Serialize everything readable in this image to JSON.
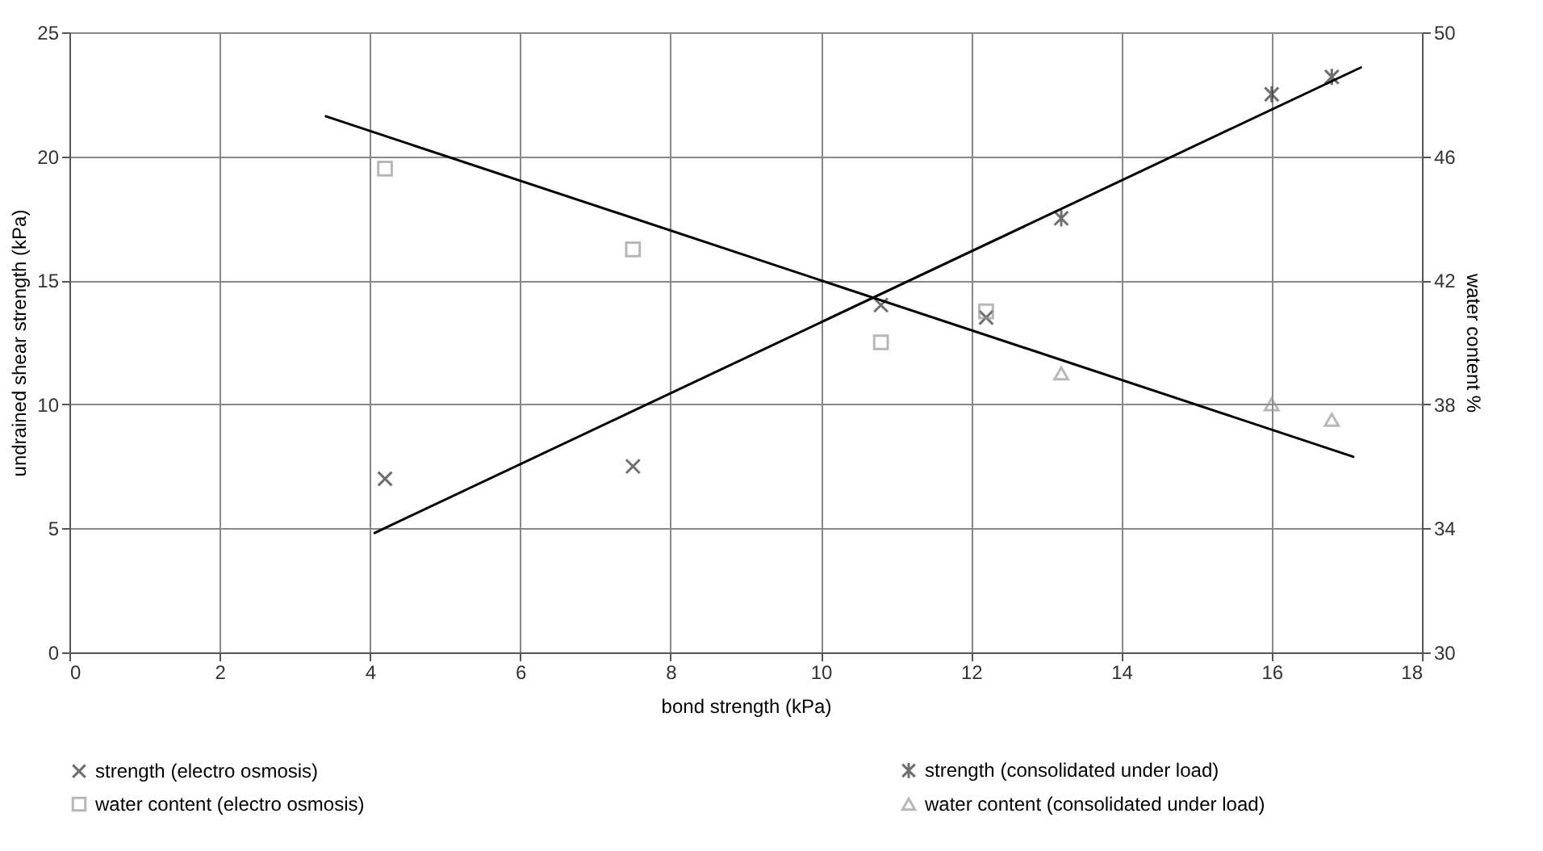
{
  "chart_data": {
    "type": "scatter",
    "xlabel": "bond strength (kPa)",
    "ylabel": "undrained shear strength (kPa)",
    "y2label": "water content %",
    "xlim": [
      0,
      18
    ],
    "xticks": [
      0,
      2,
      4,
      6,
      8,
      10,
      12,
      14,
      16,
      18
    ],
    "ylim": [
      0,
      25
    ],
    "yticks": [
      0,
      5,
      10,
      15,
      20,
      25
    ],
    "y2lim": [
      30,
      50
    ],
    "y2ticks": [
      30,
      34,
      38,
      42,
      46,
      50
    ],
    "grid": true,
    "legend": "bottom",
    "series": [
      {
        "name": "strength (electro osmosis)",
        "color": "#333333",
        "x": [
          4.2,
          7.5,
          10.8,
          12.2
        ],
        "values": [
          7.0,
          7.5,
          14.0,
          13.5
        ]
      },
      {
        "name": "strength (consolidated under load)",
        "color": "#333333",
        "x": [
          13.2,
          16.0,
          16.8
        ],
        "values": [
          17.5,
          22.5,
          23.2
        ]
      },
      {
        "name": "water content (electro osmosis)",
        "color": "#999999",
        "axis": "y2",
        "x": [
          4.2,
          7.5,
          10.8,
          12.2
        ],
        "values": [
          45.6,
          43.0,
          40.0,
          41.0
        ]
      },
      {
        "name": "water content (consolidated under load)",
        "color": "#999999",
        "axis": "y2",
        "x": [
          13.2,
          16.0,
          16.8
        ],
        "values": [
          39.0,
          38.0,
          37.5
        ]
      },
      {
        "type": "line",
        "color": "#000000",
        "x": [
          4.05,
          17.2
        ],
        "values": [
          4.8,
          23.6
        ]
      },
      {
        "type": "line",
        "color": "#000000",
        "axis": "y2",
        "x": [
          3.4,
          17.1
        ],
        "values": [
          47.3,
          36.3
        ]
      }
    ]
  }
}
